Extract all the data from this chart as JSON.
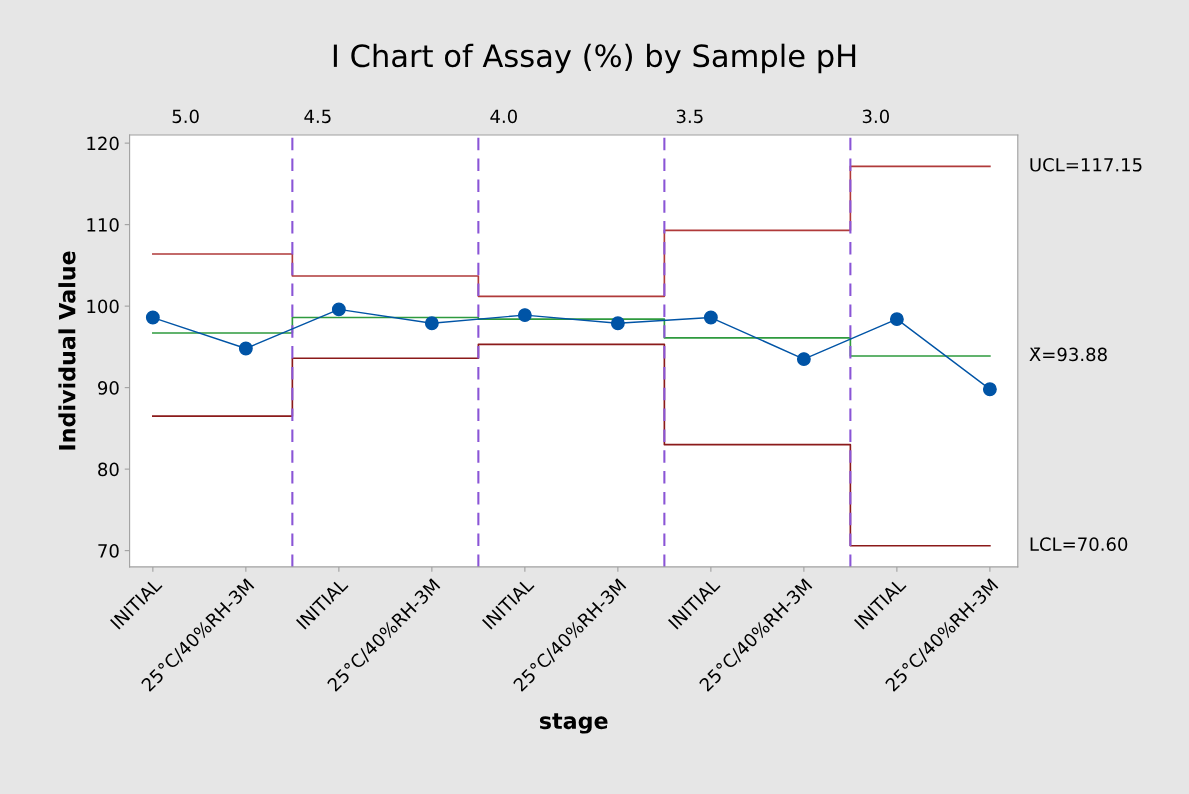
{
  "chart_data": {
    "type": "line",
    "title": "I Chart of Assay (%) by Sample pH",
    "xlabel": "stage",
    "ylabel": "Individual Value",
    "categories": [
      "INITIAL",
      "25°C/40%RH-3M",
      "INITIAL",
      "25°C/40%RH-3M",
      "INITIAL",
      "25°C/40%RH-3M",
      "INITIAL",
      "25°C/40%RH-3M",
      "INITIAL",
      "25°C/40%RH-3M"
    ],
    "ylim": [
      68,
      121
    ],
    "yticks": [
      70,
      80,
      90,
      100,
      110,
      120
    ],
    "series": [
      {
        "type": "step",
        "color": "#b03a3a",
        "values": [
          106.4,
          106.4,
          103.7,
          103.7,
          101.2,
          101.2,
          109.3,
          109.3,
          117.15,
          117.15
        ]
      },
      {
        "type": "step",
        "color": "#2e9a3e",
        "values": [
          96.7,
          96.7,
          98.6,
          98.6,
          98.4,
          98.4,
          96.1,
          96.1,
          93.88,
          93.88
        ]
      },
      {
        "type": "step",
        "color": "#8b1a1a",
        "values": [
          86.5,
          86.5,
          93.6,
          93.6,
          95.3,
          95.3,
          83.0,
          83.0,
          70.6,
          70.6
        ]
      },
      {
        "color": "#0054a6",
        "marker": "circle",
        "values": [
          98.6,
          94.8,
          99.6,
          97.9,
          98.9,
          97.9,
          98.6,
          93.5,
          98.4,
          89.8
        ]
      }
    ],
    "annotations": [
      "5.0",
      "4.5",
      "4.0",
      "3.5",
      "3.0",
      "UCL=117.15",
      "X̄=93.88",
      "LCL=70.60"
    ],
    "grid": false,
    "legend": false
  }
}
